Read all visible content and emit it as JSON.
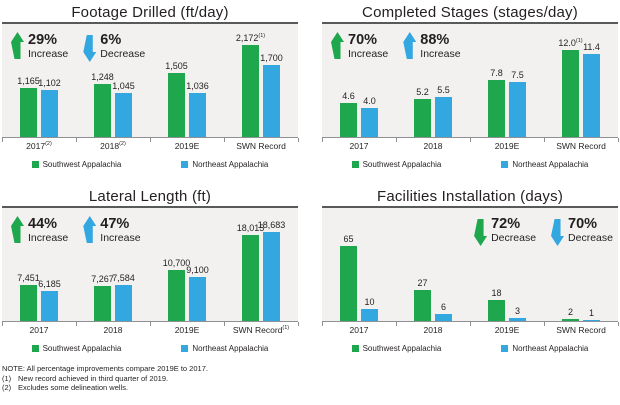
{
  "colors": {
    "green": "#1ea74c",
    "blue": "#33a7df",
    "plot_bg": "#f2f1ef",
    "plot_top_border": "#58595b",
    "axis": "#8e9093",
    "text": "#231f20"
  },
  "legend": {
    "sw": "Southwest Appalachia",
    "ne": "Northeast Appalachia"
  },
  "notes": {
    "note": "NOTE: All percentage improvements compare 2019E to 2017.",
    "fn1_label": "(1)",
    "fn1": "New record achieved in third quarter of 2019.",
    "fn2_label": "(2)",
    "fn2": "Excludes some delineation wells."
  },
  "chart_data": [
    {
      "type": "bar",
      "title": "Footage Drilled (ft/day)",
      "xlabel": "",
      "ylabel": "ft/day",
      "ylim": [
        0,
        2660
      ],
      "ymax": 2660,
      "grid": false,
      "legend_position": "bottom",
      "categories": [
        {
          "label": "2017",
          "sup": "(2)"
        },
        {
          "label": "2018",
          "sup": "(2)"
        },
        {
          "label": "2019E",
          "sup": ""
        },
        {
          "label": "SWN Record",
          "sup": ""
        }
      ],
      "series": [
        {
          "name": "Southwest Appalachia",
          "color": "green",
          "values": [
            1165,
            1248,
            1505,
            2172
          ],
          "labels": [
            "1,165",
            "1,248",
            "1,505",
            "2,172"
          ],
          "label_sups": [
            "",
            "",
            "",
            "(1)"
          ]
        },
        {
          "name": "Northeast Appalachia",
          "color": "blue",
          "values": [
            1102,
            1045,
            1036,
            1700
          ],
          "labels": [
            "1,102",
            "1,045",
            "1,036",
            "1,700"
          ],
          "label_sups": [
            "",
            "",
            "",
            ""
          ]
        }
      ],
      "indicator_pos": "left",
      "indicators": [
        {
          "pct": "29%",
          "word": "Increase",
          "dir": "up",
          "color": "green"
        },
        {
          "pct": "6%",
          "word": "Decrease",
          "dir": "down",
          "color": "blue"
        }
      ]
    },
    {
      "type": "bar",
      "title": "Completed Stages (stages/day)",
      "xlabel": "",
      "ylabel": "stages/day",
      "ylim": [
        0,
        15.5
      ],
      "ymax": 15.5,
      "grid": false,
      "legend_position": "bottom",
      "categories": [
        {
          "label": "2017",
          "sup": ""
        },
        {
          "label": "2018",
          "sup": ""
        },
        {
          "label": "2019E",
          "sup": ""
        },
        {
          "label": "SWN Record",
          "sup": ""
        }
      ],
      "series": [
        {
          "name": "Southwest Appalachia",
          "color": "green",
          "values": [
            4.6,
            5.2,
            7.8,
            12.0
          ],
          "labels": [
            "4.6",
            "5.2",
            "7.8",
            "12.0"
          ],
          "label_sups": [
            "",
            "",
            "",
            "(1)"
          ]
        },
        {
          "name": "Northeast Appalachia",
          "color": "blue",
          "values": [
            4.0,
            5.5,
            7.5,
            11.4
          ],
          "labels": [
            "4.0",
            "5.5",
            "7.5",
            "11.4"
          ],
          "label_sups": [
            "",
            "",
            "",
            ""
          ]
        }
      ],
      "indicator_pos": "left",
      "indicators": [
        {
          "pct": "70%",
          "word": "Increase",
          "dir": "up",
          "color": "green"
        },
        {
          "pct": "88%",
          "word": "Increase",
          "dir": "up",
          "color": "blue"
        }
      ]
    },
    {
      "type": "bar",
      "title": "Lateral Length (ft)",
      "xlabel": "",
      "ylabel": "ft",
      "ylim": [
        0,
        23600
      ],
      "ymax": 23600,
      "grid": false,
      "legend_position": "bottom",
      "categories": [
        {
          "label": "2017",
          "sup": ""
        },
        {
          "label": "2018",
          "sup": ""
        },
        {
          "label": "2019E",
          "sup": ""
        },
        {
          "label": "SWN Record",
          "sup": "(1)"
        }
      ],
      "series": [
        {
          "name": "Southwest Appalachia",
          "color": "green",
          "values": [
            7451,
            7267,
            10700,
            18015
          ],
          "labels": [
            "7,451",
            "7,267",
            "10,700",
            "18,015"
          ],
          "label_sups": [
            "",
            "",
            "",
            ""
          ]
        },
        {
          "name": "Northeast Appalachia",
          "color": "blue",
          "values": [
            6185,
            7584,
            9100,
            18683
          ],
          "labels": [
            "6,185",
            "7,584",
            "9,100",
            "18,683"
          ],
          "label_sups": [
            "",
            "",
            "",
            ""
          ]
        }
      ],
      "indicator_pos": "left",
      "indicators": [
        {
          "pct": "44%",
          "word": "Increase",
          "dir": "up",
          "color": "green"
        },
        {
          "pct": "47%",
          "word": "Increase",
          "dir": "up",
          "color": "blue"
        }
      ]
    },
    {
      "type": "bar",
      "title": "Facilities Installation (days)",
      "xlabel": "",
      "ylabel": "days",
      "ylim": [
        0,
        98
      ],
      "ymax": 98,
      "grid": false,
      "legend_position": "bottom",
      "categories": [
        {
          "label": "2017",
          "sup": ""
        },
        {
          "label": "2018",
          "sup": ""
        },
        {
          "label": "2019E",
          "sup": ""
        },
        {
          "label": "SWN Record",
          "sup": ""
        }
      ],
      "series": [
        {
          "name": "Southwest Appalachia",
          "color": "green",
          "values": [
            65,
            27,
            18,
            2
          ],
          "labels": [
            "65",
            "27",
            "18",
            "2"
          ],
          "label_sups": [
            "",
            "",
            "",
            ""
          ]
        },
        {
          "name": "Northeast Appalachia",
          "color": "blue",
          "values": [
            10,
            6,
            3,
            1
          ],
          "labels": [
            "10",
            "6",
            "3",
            "1"
          ],
          "label_sups": [
            "",
            "",
            "",
            ""
          ]
        }
      ],
      "indicator_pos": "right",
      "indicators": [
        {
          "pct": "72%",
          "word": "Decrease",
          "dir": "down",
          "color": "green"
        },
        {
          "pct": "70%",
          "word": "Decrease",
          "dir": "down",
          "color": "blue"
        }
      ]
    }
  ]
}
